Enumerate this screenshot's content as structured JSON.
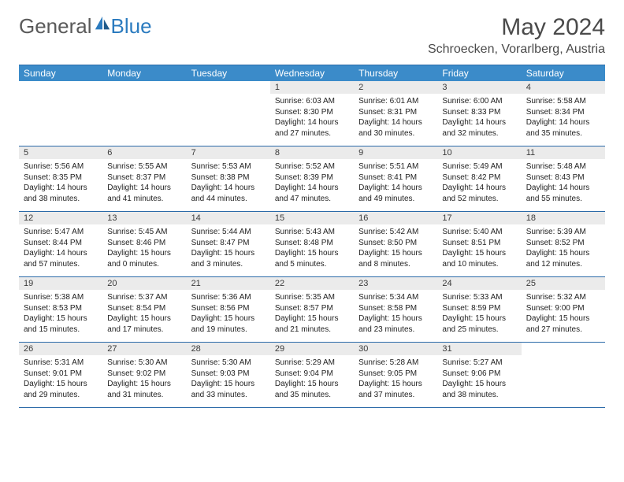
{
  "logo": {
    "text1": "General",
    "text2": "Blue"
  },
  "title": "May 2024",
  "location": "Schroecken, Vorarlberg, Austria",
  "weekdays": [
    "Sunday",
    "Monday",
    "Tuesday",
    "Wednesday",
    "Thursday",
    "Friday",
    "Saturday"
  ],
  "colors": {
    "header_bg": "#3b8bc9",
    "border": "#2b6aa8",
    "daynum_bg": "#ebebeb",
    "logo_gray": "#5a5a5a",
    "logo_blue": "#2b7bbf"
  },
  "weeks": [
    [
      {
        "n": "",
        "sr": "",
        "ss": "",
        "dl": ""
      },
      {
        "n": "",
        "sr": "",
        "ss": "",
        "dl": ""
      },
      {
        "n": "",
        "sr": "",
        "ss": "",
        "dl": ""
      },
      {
        "n": "1",
        "sr": "Sunrise: 6:03 AM",
        "ss": "Sunset: 8:30 PM",
        "dl": "Daylight: 14 hours and 27 minutes."
      },
      {
        "n": "2",
        "sr": "Sunrise: 6:01 AM",
        "ss": "Sunset: 8:31 PM",
        "dl": "Daylight: 14 hours and 30 minutes."
      },
      {
        "n": "3",
        "sr": "Sunrise: 6:00 AM",
        "ss": "Sunset: 8:33 PM",
        "dl": "Daylight: 14 hours and 32 minutes."
      },
      {
        "n": "4",
        "sr": "Sunrise: 5:58 AM",
        "ss": "Sunset: 8:34 PM",
        "dl": "Daylight: 14 hours and 35 minutes."
      }
    ],
    [
      {
        "n": "5",
        "sr": "Sunrise: 5:56 AM",
        "ss": "Sunset: 8:35 PM",
        "dl": "Daylight: 14 hours and 38 minutes."
      },
      {
        "n": "6",
        "sr": "Sunrise: 5:55 AM",
        "ss": "Sunset: 8:37 PM",
        "dl": "Daylight: 14 hours and 41 minutes."
      },
      {
        "n": "7",
        "sr": "Sunrise: 5:53 AM",
        "ss": "Sunset: 8:38 PM",
        "dl": "Daylight: 14 hours and 44 minutes."
      },
      {
        "n": "8",
        "sr": "Sunrise: 5:52 AM",
        "ss": "Sunset: 8:39 PM",
        "dl": "Daylight: 14 hours and 47 minutes."
      },
      {
        "n": "9",
        "sr": "Sunrise: 5:51 AM",
        "ss": "Sunset: 8:41 PM",
        "dl": "Daylight: 14 hours and 49 minutes."
      },
      {
        "n": "10",
        "sr": "Sunrise: 5:49 AM",
        "ss": "Sunset: 8:42 PM",
        "dl": "Daylight: 14 hours and 52 minutes."
      },
      {
        "n": "11",
        "sr": "Sunrise: 5:48 AM",
        "ss": "Sunset: 8:43 PM",
        "dl": "Daylight: 14 hours and 55 minutes."
      }
    ],
    [
      {
        "n": "12",
        "sr": "Sunrise: 5:47 AM",
        "ss": "Sunset: 8:44 PM",
        "dl": "Daylight: 14 hours and 57 minutes."
      },
      {
        "n": "13",
        "sr": "Sunrise: 5:45 AM",
        "ss": "Sunset: 8:46 PM",
        "dl": "Daylight: 15 hours and 0 minutes."
      },
      {
        "n": "14",
        "sr": "Sunrise: 5:44 AM",
        "ss": "Sunset: 8:47 PM",
        "dl": "Daylight: 15 hours and 3 minutes."
      },
      {
        "n": "15",
        "sr": "Sunrise: 5:43 AM",
        "ss": "Sunset: 8:48 PM",
        "dl": "Daylight: 15 hours and 5 minutes."
      },
      {
        "n": "16",
        "sr": "Sunrise: 5:42 AM",
        "ss": "Sunset: 8:50 PM",
        "dl": "Daylight: 15 hours and 8 minutes."
      },
      {
        "n": "17",
        "sr": "Sunrise: 5:40 AM",
        "ss": "Sunset: 8:51 PM",
        "dl": "Daylight: 15 hours and 10 minutes."
      },
      {
        "n": "18",
        "sr": "Sunrise: 5:39 AM",
        "ss": "Sunset: 8:52 PM",
        "dl": "Daylight: 15 hours and 12 minutes."
      }
    ],
    [
      {
        "n": "19",
        "sr": "Sunrise: 5:38 AM",
        "ss": "Sunset: 8:53 PM",
        "dl": "Daylight: 15 hours and 15 minutes."
      },
      {
        "n": "20",
        "sr": "Sunrise: 5:37 AM",
        "ss": "Sunset: 8:54 PM",
        "dl": "Daylight: 15 hours and 17 minutes."
      },
      {
        "n": "21",
        "sr": "Sunrise: 5:36 AM",
        "ss": "Sunset: 8:56 PM",
        "dl": "Daylight: 15 hours and 19 minutes."
      },
      {
        "n": "22",
        "sr": "Sunrise: 5:35 AM",
        "ss": "Sunset: 8:57 PM",
        "dl": "Daylight: 15 hours and 21 minutes."
      },
      {
        "n": "23",
        "sr": "Sunrise: 5:34 AM",
        "ss": "Sunset: 8:58 PM",
        "dl": "Daylight: 15 hours and 23 minutes."
      },
      {
        "n": "24",
        "sr": "Sunrise: 5:33 AM",
        "ss": "Sunset: 8:59 PM",
        "dl": "Daylight: 15 hours and 25 minutes."
      },
      {
        "n": "25",
        "sr": "Sunrise: 5:32 AM",
        "ss": "Sunset: 9:00 PM",
        "dl": "Daylight: 15 hours and 27 minutes."
      }
    ],
    [
      {
        "n": "26",
        "sr": "Sunrise: 5:31 AM",
        "ss": "Sunset: 9:01 PM",
        "dl": "Daylight: 15 hours and 29 minutes."
      },
      {
        "n": "27",
        "sr": "Sunrise: 5:30 AM",
        "ss": "Sunset: 9:02 PM",
        "dl": "Daylight: 15 hours and 31 minutes."
      },
      {
        "n": "28",
        "sr": "Sunrise: 5:30 AM",
        "ss": "Sunset: 9:03 PM",
        "dl": "Daylight: 15 hours and 33 minutes."
      },
      {
        "n": "29",
        "sr": "Sunrise: 5:29 AM",
        "ss": "Sunset: 9:04 PM",
        "dl": "Daylight: 15 hours and 35 minutes."
      },
      {
        "n": "30",
        "sr": "Sunrise: 5:28 AM",
        "ss": "Sunset: 9:05 PM",
        "dl": "Daylight: 15 hours and 37 minutes."
      },
      {
        "n": "31",
        "sr": "Sunrise: 5:27 AM",
        "ss": "Sunset: 9:06 PM",
        "dl": "Daylight: 15 hours and 38 minutes."
      },
      {
        "n": "",
        "sr": "",
        "ss": "",
        "dl": ""
      }
    ]
  ]
}
